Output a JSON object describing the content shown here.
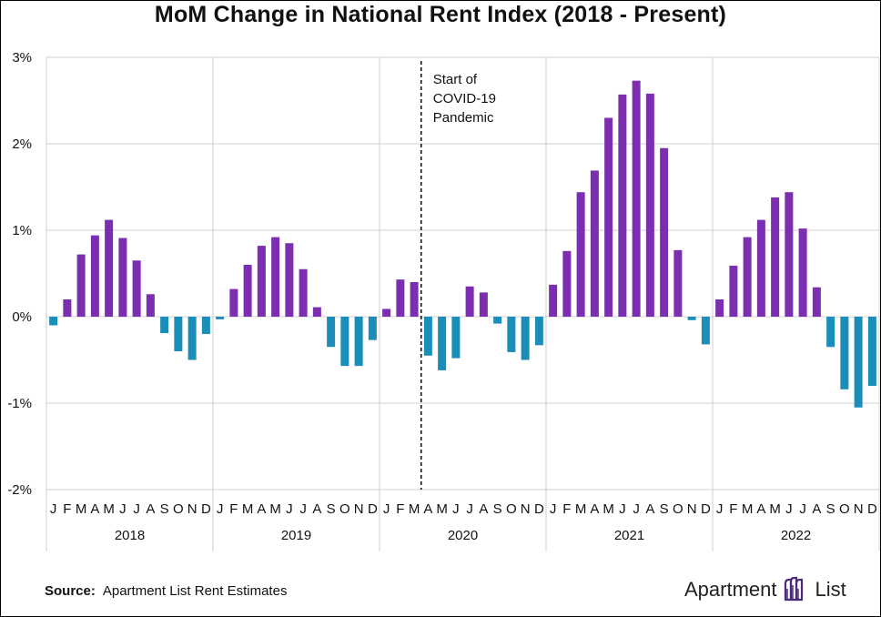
{
  "page": {
    "title": "MoM Change in National Rent Index (2018 - Present)",
    "source_label": "Source:",
    "source_text": "Apartment List Rent Estimates",
    "logo_text_1": "Apartment",
    "logo_text_2": "List"
  },
  "colors": {
    "positive": "#7b2fb0",
    "negative": "#1a8eb8",
    "grid": "#cfcfcf",
    "logo_accent": "#4b2a7b"
  },
  "chart_data": {
    "type": "bar",
    "title": "MoM Change in National Rent Index (2018 - Present)",
    "ylim": [
      -2,
      3
    ],
    "yticks": [
      {
        "value": 3,
        "label": "3%"
      },
      {
        "value": 2,
        "label": "2%"
      },
      {
        "value": 1,
        "label": "1%"
      },
      {
        "value": 0,
        "label": "0%"
      },
      {
        "value": -1,
        "label": "-1%"
      },
      {
        "value": -2,
        "label": "-2%"
      }
    ],
    "grid": true,
    "month_labels": [
      "J",
      "F",
      "M",
      "A",
      "M",
      "J",
      "J",
      "A",
      "S",
      "O",
      "N",
      "D"
    ],
    "years": [
      "2018",
      "2019",
      "2020",
      "2021",
      "2022"
    ],
    "values": [
      -0.1,
      0.2,
      0.72,
      0.94,
      1.12,
      0.91,
      0.65,
      0.26,
      -0.19,
      -0.4,
      -0.5,
      -0.2,
      -0.03,
      0.32,
      0.6,
      0.82,
      0.92,
      0.85,
      0.55,
      0.11,
      -0.35,
      -0.57,
      -0.57,
      -0.27,
      0.09,
      0.43,
      0.4,
      -0.45,
      -0.62,
      -0.48,
      0.35,
      0.28,
      -0.08,
      -0.41,
      -0.5,
      -0.33,
      0.37,
      0.76,
      1.44,
      1.69,
      2.3,
      2.57,
      2.73,
      2.58,
      1.95,
      0.77,
      -0.04,
      -0.32,
      0.2,
      0.59,
      0.92,
      1.12,
      1.38,
      1.44,
      1.02,
      0.34,
      -0.35,
      -0.84,
      -1.05,
      -0.8
    ],
    "annotation": {
      "lines": [
        "Start of",
        "COVID-19",
        "Pandemic"
      ],
      "year": "2020",
      "month_index": 3
    }
  }
}
